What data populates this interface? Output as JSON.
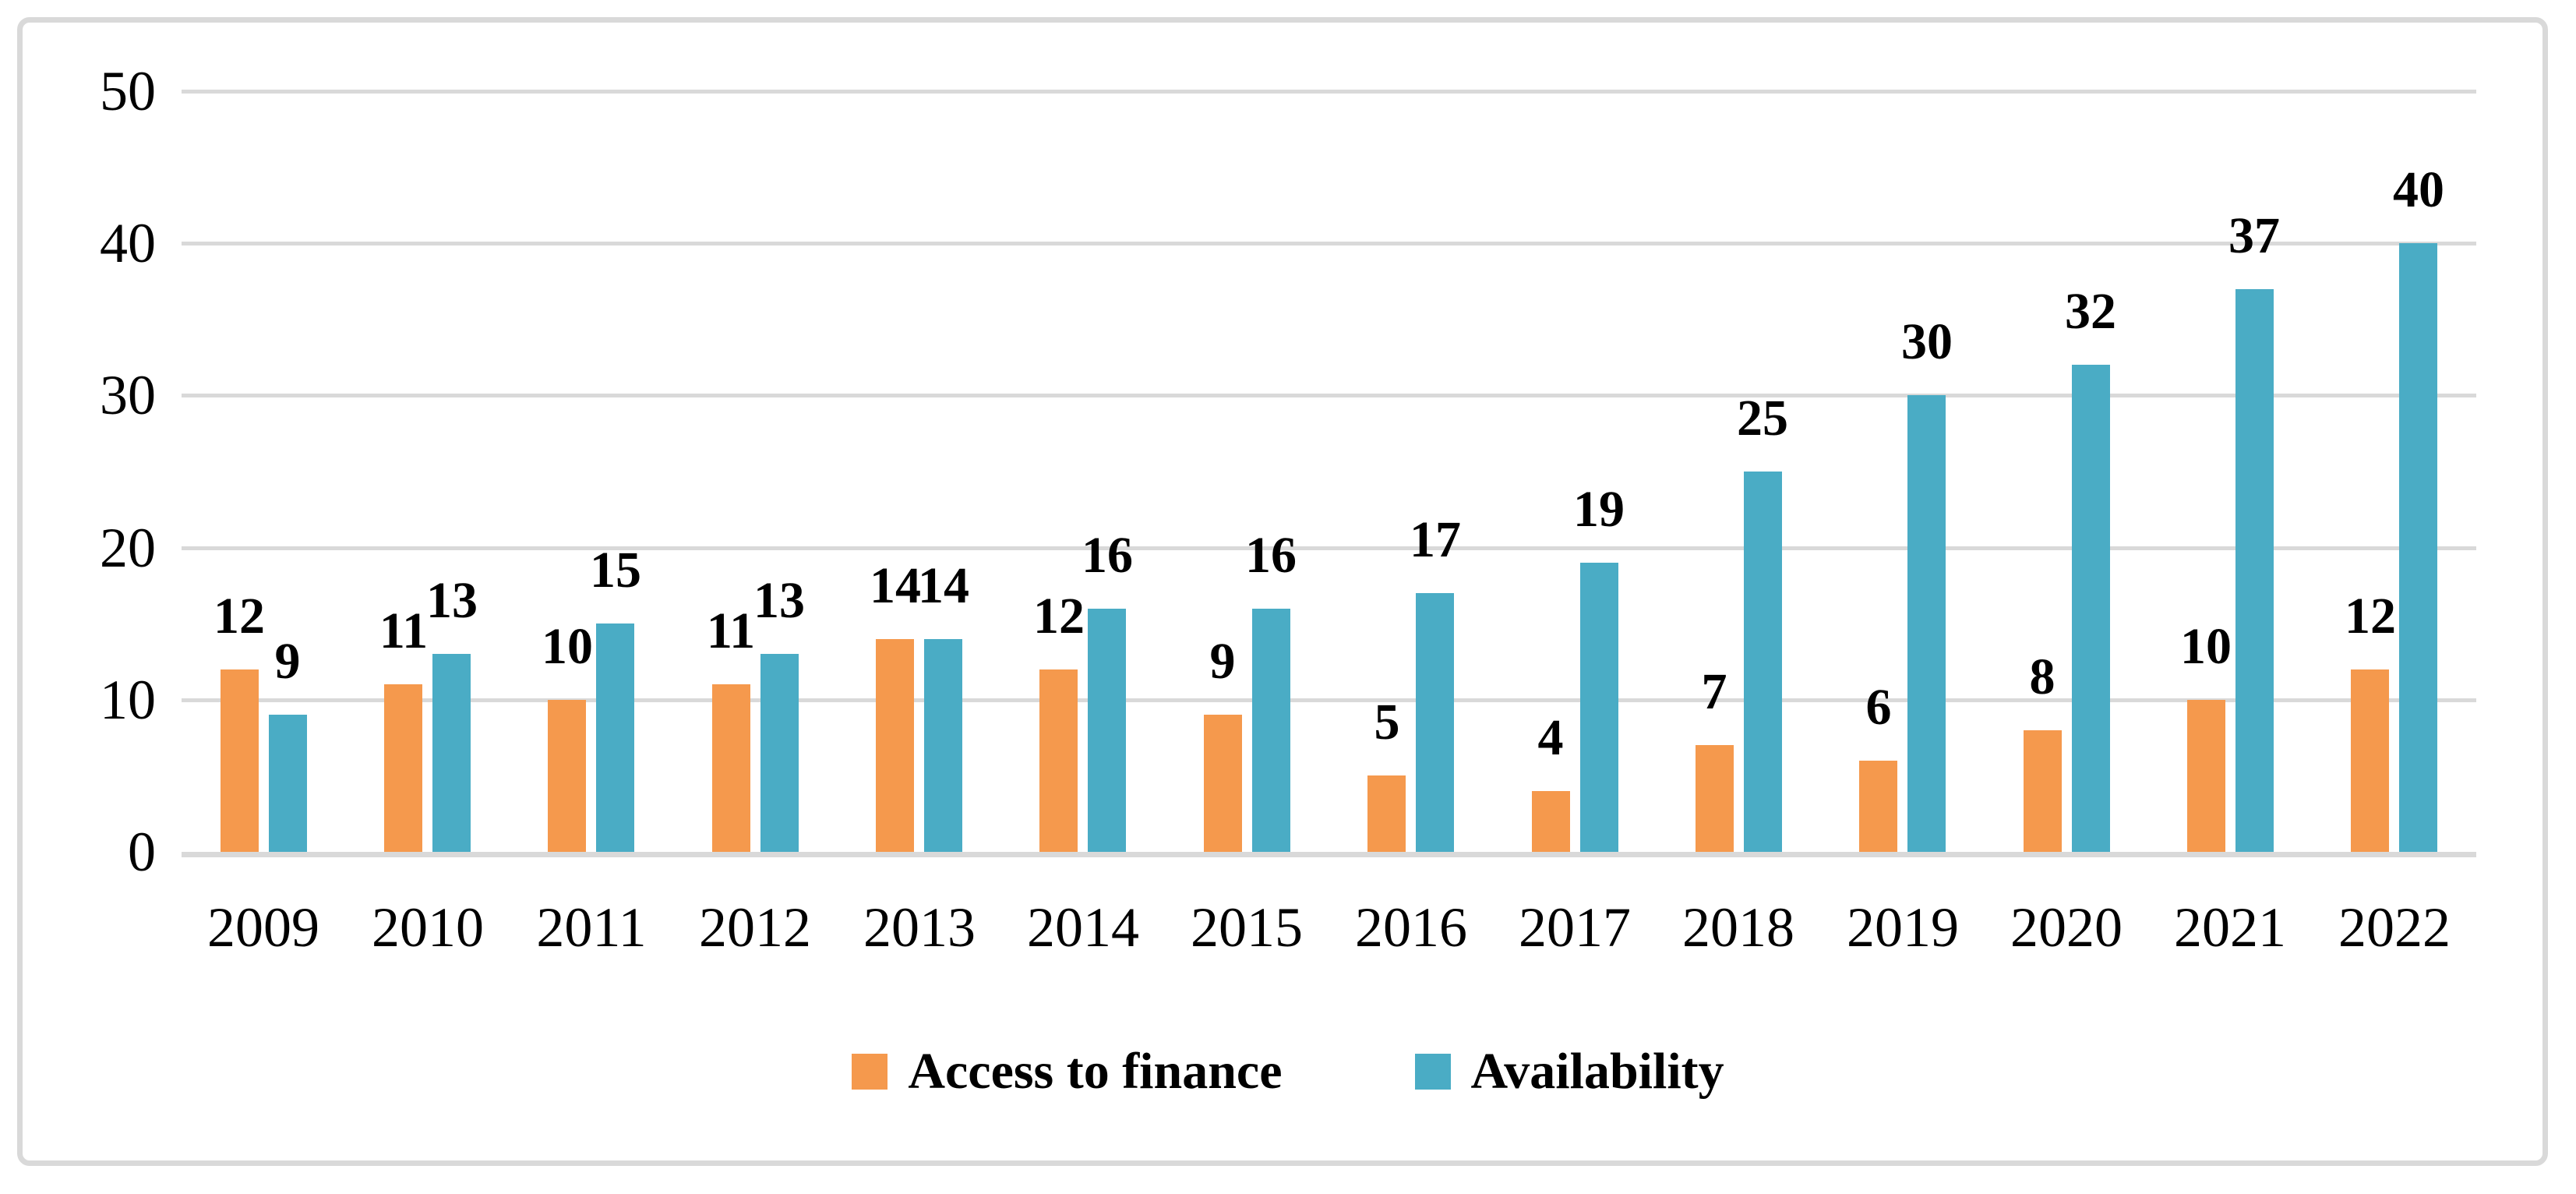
{
  "chart_data": {
    "type": "bar",
    "title": "",
    "xlabel": "",
    "ylabel": "",
    "categories": [
      "2009",
      "2010",
      "2011",
      "2012",
      "2013",
      "2014",
      "2015",
      "2016",
      "2017",
      "2018",
      "2019",
      "2020",
      "2021",
      "2022"
    ],
    "series": [
      {
        "name": "Access to finance",
        "color": "#F5994D",
        "values": [
          12,
          11,
          10,
          11,
          14,
          12,
          9,
          5,
          4,
          7,
          6,
          8,
          10,
          12
        ]
      },
      {
        "name": "Availability",
        "color": "#4AACC5",
        "values": [
          9,
          13,
          15,
          13,
          14,
          16,
          16,
          17,
          19,
          25,
          30,
          32,
          37,
          40
        ]
      }
    ],
    "ylim": [
      0,
      50
    ],
    "yticks": [
      0,
      10,
      20,
      30,
      40,
      50
    ],
    "grid": "horizontal",
    "gridline_color": "#D9D9D9",
    "legend_position": "bottom",
    "data_labels": "outside-end"
  },
  "legend": {
    "items": [
      {
        "label": "Access to finance",
        "color": "#F5994D"
      },
      {
        "label": "Availability",
        "color": "#4AACC5"
      }
    ]
  },
  "colors": {
    "background": "#FFFFFF",
    "border": "#D9D9D9",
    "axis": "#D9D9D9",
    "text": "#000000"
  }
}
